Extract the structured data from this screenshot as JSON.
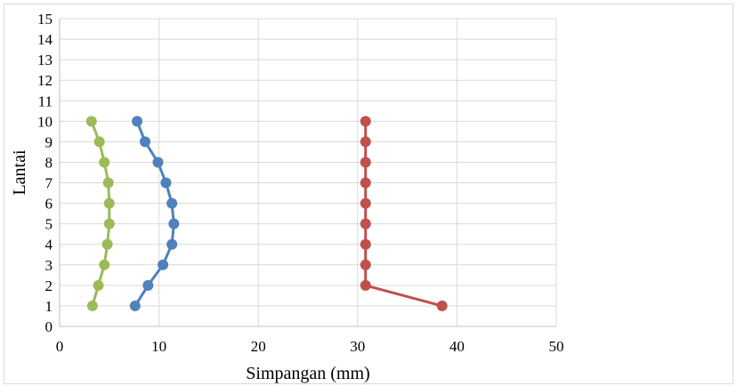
{
  "chart_data": {
    "type": "line",
    "title": "",
    "xlabel": "Simpangan (mm)",
    "ylabel": "Lantai",
    "xlim": [
      0,
      50
    ],
    "ylim": [
      0,
      15
    ],
    "x_ticks": [
      0,
      10,
      20,
      30,
      40,
      50
    ],
    "y_ticks": [
      0,
      1,
      2,
      3,
      4,
      5,
      6,
      7,
      8,
      9,
      10,
      11,
      12,
      13,
      14,
      15
    ],
    "grid": true,
    "legend": "none",
    "series": [
      {
        "color": "#9BBB59",
        "points": [
          [
            3.3,
            1
          ],
          [
            3.9,
            2
          ],
          [
            4.5,
            3
          ],
          [
            4.8,
            4
          ],
          [
            5.0,
            5
          ],
          [
            5.0,
            6
          ],
          [
            4.9,
            7
          ],
          [
            4.5,
            8
          ],
          [
            4.0,
            9
          ],
          [
            3.2,
            10
          ]
        ]
      },
      {
        "color": "#4F81BD",
        "points": [
          [
            7.6,
            1
          ],
          [
            8.9,
            2
          ],
          [
            10.4,
            3
          ],
          [
            11.3,
            4
          ],
          [
            11.5,
            5
          ],
          [
            11.3,
            6
          ],
          [
            10.7,
            7
          ],
          [
            9.9,
            8
          ],
          [
            8.6,
            9
          ],
          [
            7.8,
            10
          ]
        ]
      },
      {
        "color": "#C0504D",
        "points": [
          [
            38.5,
            1
          ],
          [
            30.8,
            2
          ],
          [
            30.8,
            3
          ],
          [
            30.8,
            4
          ],
          [
            30.8,
            5
          ],
          [
            30.8,
            6
          ],
          [
            30.8,
            7
          ],
          [
            30.8,
            8
          ],
          [
            30.8,
            9
          ],
          [
            30.8,
            10
          ]
        ]
      }
    ]
  }
}
